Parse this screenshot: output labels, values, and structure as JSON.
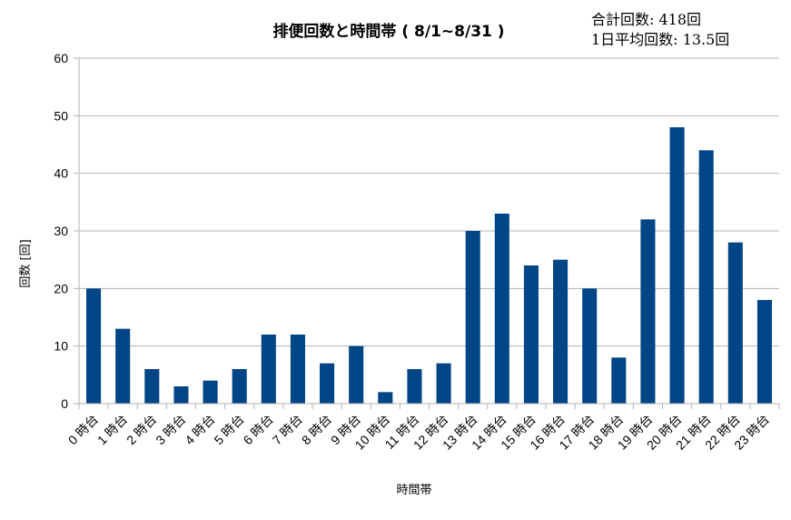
{
  "chart_data": {
    "type": "bar",
    "title": "排便回数と時間帯 ( 8/1~8/31 )",
    "stats": {
      "total": "合計回数: 418回",
      "daily_avg": "1日平均回数: 13.5回"
    },
    "xlabel": "時間帯",
    "ylabel": "回数 [回]",
    "ylim": [
      0,
      60
    ],
    "yticks": [
      0,
      10,
      20,
      30,
      40,
      50,
      60
    ],
    "grid": true,
    "bar_color": "#004586",
    "categories": [
      "0 時台",
      "1 時台",
      "2 時台",
      "3 時台",
      "4 時台",
      "5 時台",
      "6 時台",
      "7 時台",
      "8 時台",
      "9 時台",
      "10 時台",
      "11 時台",
      "12 時台",
      "13 時台",
      "14 時台",
      "15 時台",
      "16 時台",
      "17 時台",
      "18 時台",
      "19 時台",
      "20 時台",
      "21 時台",
      "22 時台",
      "23 時台"
    ],
    "values": [
      20,
      13,
      6,
      3,
      4,
      6,
      12,
      12,
      7,
      10,
      2,
      6,
      7,
      30,
      33,
      24,
      25,
      20,
      8,
      32,
      48,
      44,
      28,
      18
    ]
  }
}
